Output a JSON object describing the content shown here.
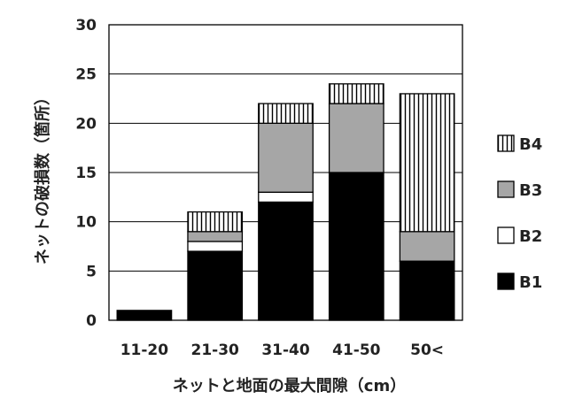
{
  "chart_data": {
    "type": "bar",
    "stacked": true,
    "title": "",
    "xlabel": "ネットと地面の最大間隙（cm）",
    "ylabel": "ネットの破損数（箇所）",
    "ylim": [
      0,
      30
    ],
    "yticks": [
      0,
      5,
      10,
      15,
      20,
      25,
      30
    ],
    "grid": "horizontal",
    "legend_position": "right",
    "categories": [
      "11-20",
      "21-30",
      "31-40",
      "41-50",
      "50<"
    ],
    "series": [
      {
        "name": "B1",
        "values": [
          1,
          7,
          12,
          15,
          6
        ],
        "fill": "#000000",
        "pattern": "solid"
      },
      {
        "name": "B2",
        "values": [
          0,
          1,
          1,
          0,
          0
        ],
        "fill": "#ffffff",
        "pattern": "solid"
      },
      {
        "name": "B3",
        "values": [
          0,
          1,
          7,
          7,
          3
        ],
        "fill": "#a6a6a6",
        "pattern": "solid"
      },
      {
        "name": "B4",
        "values": [
          0,
          2,
          2,
          2,
          14
        ],
        "fill": "#ffffff",
        "pattern": "vertical-lines"
      }
    ]
  }
}
